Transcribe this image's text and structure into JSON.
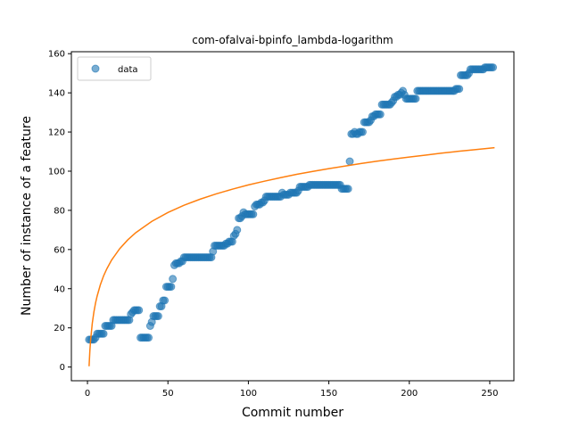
{
  "chart_data": {
    "type": "scatter",
    "title": "com-ofalvai-bpinfo_lambda-logarithm",
    "xlabel": "Commit number",
    "ylabel": "Number of instance of a feature",
    "xlim": [
      -10,
      265
    ],
    "ylim": [
      -7,
      161
    ],
    "xticks": [
      0,
      50,
      100,
      150,
      200,
      250
    ],
    "yticks": [
      0,
      20,
      40,
      60,
      80,
      100,
      120,
      140,
      160
    ],
    "grid": false,
    "legend": {
      "placement": "top-left",
      "entries": [
        "data"
      ]
    },
    "colors": {
      "data": "#1f77b4",
      "fit": "#ff7f0e"
    },
    "series": [
      {
        "name": "data",
        "kind": "scatter",
        "points": [
          [
            1,
            14
          ],
          [
            2,
            14
          ],
          [
            3,
            14
          ],
          [
            4,
            14
          ],
          [
            5,
            15
          ],
          [
            6,
            17
          ],
          [
            7,
            17
          ],
          [
            8,
            17
          ],
          [
            9,
            17
          ],
          [
            10,
            17
          ],
          [
            11,
            21
          ],
          [
            12,
            21
          ],
          [
            13,
            21
          ],
          [
            14,
            21
          ],
          [
            15,
            21
          ],
          [
            16,
            24
          ],
          [
            17,
            24
          ],
          [
            18,
            24
          ],
          [
            19,
            24
          ],
          [
            20,
            24
          ],
          [
            21,
            24
          ],
          [
            22,
            24
          ],
          [
            23,
            24
          ],
          [
            24,
            24
          ],
          [
            25,
            24
          ],
          [
            26,
            24
          ],
          [
            27,
            27
          ],
          [
            28,
            28
          ],
          [
            29,
            29
          ],
          [
            30,
            29
          ],
          [
            31,
            29
          ],
          [
            32,
            29
          ],
          [
            33,
            15
          ],
          [
            34,
            15
          ],
          [
            35,
            15
          ],
          [
            36,
            15
          ],
          [
            37,
            15
          ],
          [
            38,
            15
          ],
          [
            39,
            21
          ],
          [
            40,
            23
          ],
          [
            41,
            26
          ],
          [
            42,
            26
          ],
          [
            43,
            26
          ],
          [
            44,
            26
          ],
          [
            45,
            31
          ],
          [
            46,
            31
          ],
          [
            47,
            34
          ],
          [
            48,
            34
          ],
          [
            49,
            41
          ],
          [
            50,
            41
          ],
          [
            51,
            41
          ],
          [
            52,
            41
          ],
          [
            53,
            45
          ],
          [
            54,
            52
          ],
          [
            55,
            53
          ],
          [
            56,
            53
          ],
          [
            57,
            53
          ],
          [
            58,
            54
          ],
          [
            59,
            54
          ],
          [
            60,
            56
          ],
          [
            61,
            56
          ],
          [
            62,
            56
          ],
          [
            63,
            56
          ],
          [
            64,
            56
          ],
          [
            65,
            56
          ],
          [
            66,
            56
          ],
          [
            67,
            56
          ],
          [
            68,
            56
          ],
          [
            69,
            56
          ],
          [
            70,
            56
          ],
          [
            71,
            56
          ],
          [
            72,
            56
          ],
          [
            73,
            56
          ],
          [
            74,
            56
          ],
          [
            75,
            56
          ],
          [
            76,
            56
          ],
          [
            77,
            56
          ],
          [
            78,
            59
          ],
          [
            79,
            62
          ],
          [
            80,
            62
          ],
          [
            81,
            62
          ],
          [
            82,
            62
          ],
          [
            83,
            62
          ],
          [
            84,
            62
          ],
          [
            85,
            62
          ],
          [
            86,
            63
          ],
          [
            87,
            63
          ],
          [
            88,
            64
          ],
          [
            89,
            64
          ],
          [
            90,
            64
          ],
          [
            91,
            67
          ],
          [
            92,
            68
          ],
          [
            93,
            70
          ],
          [
            94,
            76
          ],
          [
            95,
            76
          ],
          [
            96,
            77
          ],
          [
            97,
            79
          ],
          [
            98,
            78
          ],
          [
            99,
            78
          ],
          [
            100,
            78
          ],
          [
            101,
            78
          ],
          [
            102,
            78
          ],
          [
            103,
            78
          ],
          [
            104,
            82
          ],
          [
            105,
            83
          ],
          [
            106,
            83
          ],
          [
            107,
            83
          ],
          [
            108,
            84
          ],
          [
            109,
            84
          ],
          [
            110,
            85
          ],
          [
            111,
            87
          ],
          [
            112,
            87
          ],
          [
            113,
            87
          ],
          [
            114,
            87
          ],
          [
            115,
            87
          ],
          [
            116,
            87
          ],
          [
            117,
            87
          ],
          [
            118,
            87
          ],
          [
            119,
            87
          ],
          [
            120,
            87
          ],
          [
            121,
            89
          ],
          [
            122,
            88
          ],
          [
            123,
            88
          ],
          [
            124,
            88
          ],
          [
            125,
            88
          ],
          [
            126,
            89
          ],
          [
            127,
            89
          ],
          [
            128,
            89
          ],
          [
            129,
            89
          ],
          [
            130,
            89
          ],
          [
            131,
            90
          ],
          [
            132,
            92
          ],
          [
            133,
            92
          ],
          [
            134,
            92
          ],
          [
            135,
            92
          ],
          [
            136,
            92
          ],
          [
            137,
            92
          ],
          [
            138,
            93
          ],
          [
            139,
            93
          ],
          [
            140,
            93
          ],
          [
            141,
            93
          ],
          [
            142,
            93
          ],
          [
            143,
            93
          ],
          [
            144,
            93
          ],
          [
            145,
            93
          ],
          [
            146,
            93
          ],
          [
            147,
            93
          ],
          [
            148,
            93
          ],
          [
            149,
            93
          ],
          [
            150,
            93
          ],
          [
            151,
            93
          ],
          [
            152,
            93
          ],
          [
            153,
            93
          ],
          [
            154,
            93
          ],
          [
            155,
            93
          ],
          [
            156,
            93
          ],
          [
            157,
            93
          ],
          [
            158,
            91
          ],
          [
            159,
            91
          ],
          [
            160,
            91
          ],
          [
            161,
            91
          ],
          [
            162,
            91
          ],
          [
            163,
            105
          ],
          [
            164,
            119
          ],
          [
            165,
            119
          ],
          [
            166,
            120
          ],
          [
            167,
            119
          ],
          [
            168,
            119
          ],
          [
            169,
            120
          ],
          [
            170,
            120
          ],
          [
            171,
            120
          ],
          [
            172,
            125
          ],
          [
            173,
            125
          ],
          [
            174,
            125
          ],
          [
            175,
            125
          ],
          [
            176,
            126
          ],
          [
            177,
            128
          ],
          [
            178,
            128
          ],
          [
            179,
            129
          ],
          [
            180,
            129
          ],
          [
            181,
            129
          ],
          [
            182,
            129
          ],
          [
            183,
            134
          ],
          [
            184,
            134
          ],
          [
            185,
            134
          ],
          [
            186,
            134
          ],
          [
            187,
            134
          ],
          [
            188,
            134
          ],
          [
            189,
            135
          ],
          [
            190,
            136
          ],
          [
            191,
            138
          ],
          [
            192,
            138
          ],
          [
            193,
            139
          ],
          [
            194,
            139
          ],
          [
            195,
            140
          ],
          [
            196,
            141
          ],
          [
            197,
            139
          ],
          [
            198,
            137
          ],
          [
            199,
            137
          ],
          [
            200,
            137
          ],
          [
            201,
            137
          ],
          [
            202,
            137
          ],
          [
            203,
            137
          ],
          [
            204,
            137
          ],
          [
            205,
            141
          ],
          [
            206,
            141
          ],
          [
            207,
            141
          ],
          [
            208,
            141
          ],
          [
            209,
            141
          ],
          [
            210,
            141
          ],
          [
            211,
            141
          ],
          [
            212,
            141
          ],
          [
            213,
            141
          ],
          [
            214,
            141
          ],
          [
            215,
            141
          ],
          [
            216,
            141
          ],
          [
            217,
            141
          ],
          [
            218,
            141
          ],
          [
            219,
            141
          ],
          [
            220,
            141
          ],
          [
            221,
            141
          ],
          [
            222,
            141
          ],
          [
            223,
            141
          ],
          [
            224,
            141
          ],
          [
            225,
            141
          ],
          [
            226,
            141
          ],
          [
            227,
            141
          ],
          [
            228,
            141
          ],
          [
            229,
            142
          ],
          [
            230,
            142
          ],
          [
            231,
            142
          ],
          [
            232,
            149
          ],
          [
            233,
            149
          ],
          [
            234,
            149
          ],
          [
            235,
            149
          ],
          [
            236,
            149
          ],
          [
            237,
            150
          ],
          [
            238,
            152
          ],
          [
            239,
            152
          ],
          [
            240,
            152
          ],
          [
            241,
            152
          ],
          [
            242,
            152
          ],
          [
            243,
            152
          ],
          [
            244,
            152
          ],
          [
            245,
            152
          ],
          [
            246,
            152
          ],
          [
            247,
            153
          ],
          [
            248,
            153
          ],
          [
            249,
            153
          ],
          [
            250,
            153
          ],
          [
            251,
            153
          ],
          [
            252,
            153
          ]
        ]
      },
      {
        "name": "",
        "kind": "line",
        "function": "logarithmic fit",
        "x": [
          1,
          1.5,
          2,
          3,
          4,
          5,
          6,
          8,
          10,
          12,
          15,
          20,
          25,
          30,
          40,
          50,
          60,
          70,
          80,
          90,
          100,
          110,
          120,
          130,
          140,
          150,
          160,
          170,
          180,
          190,
          200,
          210,
          220,
          230,
          240,
          253
        ],
        "y": [
          0.4,
          8.4,
          14.2,
          22.4,
          28.1,
          32.6,
          36.2,
          42.0,
          46.5,
          50.1,
          54.6,
          60.4,
          64.9,
          68.6,
          74.4,
          78.9,
          82.6,
          85.7,
          88.4,
          90.8,
          93.0,
          94.9,
          96.7,
          98.4,
          99.9,
          101.3,
          102.6,
          103.9,
          105.1,
          106.2,
          107.2,
          108.2,
          109.2,
          110.1,
          110.9,
          112.0
        ]
      }
    ]
  }
}
